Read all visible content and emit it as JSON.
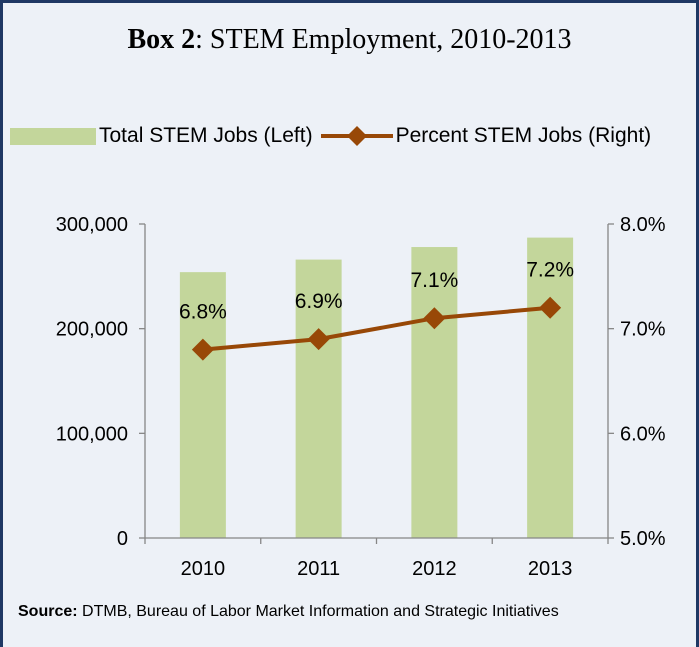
{
  "chart_data": {
    "type": "bar",
    "title": {
      "lead": "Box 2",
      "rest": ": STEM Employment, 2010-2013"
    },
    "categories": [
      "2010",
      "2011",
      "2012",
      "2013"
    ],
    "series": [
      {
        "name": "Total STEM Jobs (Left)",
        "type": "bar",
        "axis": "left",
        "values": [
          254000,
          266000,
          278000,
          287000
        ],
        "color": "#c3d69b"
      },
      {
        "name": "Percent STEM Jobs (Right)",
        "type": "line",
        "axis": "right",
        "marker": "diamond",
        "values": [
          6.8,
          6.9,
          7.1,
          7.2
        ],
        "data_labels": [
          "6.8%",
          "6.9%",
          "7.1%",
          "7.2%"
        ],
        "color": "#984807"
      }
    ],
    "ylim": [
      0,
      300000
    ],
    "y_ticks": [
      0,
      100000,
      200000,
      300000
    ],
    "y_tick_labels": [
      "0",
      "100,000",
      "200,000",
      "300,000"
    ],
    "y2lim": [
      5.0,
      8.0
    ],
    "y2_ticks": [
      5.0,
      6.0,
      7.0,
      8.0
    ],
    "y2_tick_labels": [
      "5.0%",
      "6.0%",
      "7.0%",
      "8.0%"
    ],
    "grid": false,
    "legend": "top"
  },
  "source": {
    "label": "Source:",
    "text": "DTMB, Bureau of Labor Market Information and Strategic Initiatives"
  },
  "colors": {
    "background": "#edf1f7",
    "border": "#1f3864",
    "axis": "#868686"
  }
}
